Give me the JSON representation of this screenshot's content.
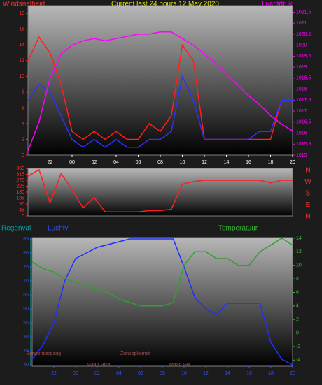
{
  "chart_data": [
    {
      "type": "line",
      "title": "Current last 24 hours 12 May 2020",
      "y_label": "Windsnelheid",
      "y2_label": "Luchtdruk",
      "x": [
        0,
        1,
        2,
        3,
        4,
        5,
        6,
        7,
        8,
        9,
        10,
        11,
        12,
        13,
        14,
        15,
        16,
        17,
        18,
        19,
        20,
        21,
        22,
        23,
        24
      ],
      "xlim": [
        0,
        24
      ],
      "xticks": [
        {
          "value": 2,
          "label": "22"
        },
        {
          "value": 4,
          "label": "00"
        },
        {
          "value": 6,
          "label": "02"
        },
        {
          "value": 8,
          "label": "04"
        },
        {
          "value": 10,
          "label": "06"
        },
        {
          "value": 12,
          "label": "08"
        },
        {
          "value": 14,
          "label": "10"
        },
        {
          "value": 16,
          "label": "12"
        },
        {
          "value": 18,
          "label": "14"
        },
        {
          "value": 20,
          "label": "16"
        },
        {
          "value": 22,
          "label": "18"
        },
        {
          "value": 24,
          "label": "20"
        }
      ],
      "ylim": [
        0,
        19
      ],
      "yticks": [
        0,
        2,
        4,
        6,
        8,
        10,
        12,
        14,
        16,
        18
      ],
      "y2lim": [
        1015,
        1021.8
      ],
      "y2ticks": [
        1015,
        {
          "value": 1015.5,
          "label": "1015,5"
        },
        1016,
        {
          "value": 1016.5,
          "label": "1016,5"
        },
        1017,
        {
          "value": 1017.5,
          "label": "1017,5"
        },
        1018,
        {
          "value": 1018.5,
          "label": "1018,5"
        },
        1019,
        {
          "value": 1019.5,
          "label": "1019,5"
        },
        1020,
        {
          "value": 1020.5,
          "label": "1020,5"
        },
        1021,
        {
          "value": 1021.5,
          "label": "1021,5"
        }
      ],
      "series": [
        {
          "color": "#ff2020",
          "values": [
            12,
            15,
            13,
            9,
            3,
            2,
            3,
            2,
            3,
            2,
            2,
            4,
            3,
            5,
            14,
            12,
            2,
            2,
            2,
            2,
            2,
            2,
            2,
            7,
            7
          ]
        },
        {
          "color": "#3030ff",
          "values": [
            7,
            9,
            8,
            5,
            2,
            1,
            2,
            1,
            2,
            1,
            1,
            2,
            2,
            3,
            10,
            7,
            2,
            2,
            2,
            2,
            2,
            3,
            3,
            7,
            7
          ]
        },
        {
          "color": "#ff00ff",
          "axis": "y2",
          "values": [
            1015.2,
            1016.5,
            1018.5,
            1019.6,
            1020.0,
            1020.2,
            1020.3,
            1020.2,
            1020.3,
            1020.4,
            1020.5,
            1020.5,
            1020.6,
            1020.6,
            1020.3,
            1020.0,
            1019.6,
            1019.2,
            1018.7,
            1018.2,
            1017.7,
            1017.3,
            1016.8,
            1016.4,
            1016.1
          ]
        }
      ]
    },
    {
      "type": "line",
      "x": [
        0,
        1,
        2,
        3,
        4,
        5,
        6,
        7,
        8,
        9,
        10,
        11,
        12,
        13,
        14,
        15,
        16,
        17,
        18,
        19,
        20,
        21,
        22,
        23,
        24
      ],
      "xlim": [
        0,
        24
      ],
      "ylim": [
        0,
        360
      ],
      "yticks": [
        0,
        45,
        90,
        135,
        180,
        225,
        270,
        315,
        360
      ],
      "right_labels": [
        "N",
        "W",
        "S",
        "E",
        "N"
      ],
      "series": [
        {
          "color": "#ff2020",
          "values": [
            300,
            350,
            100,
            320,
            200,
            60,
            140,
            30,
            30,
            30,
            30,
            40,
            40,
            50,
            240,
            260,
            270,
            270,
            270,
            270,
            270,
            270,
            250,
            270,
            270
          ]
        }
      ]
    },
    {
      "type": "line",
      "rain_label": "Regenval",
      "y_label": "Luchtv",
      "y2_label": "Temperatuur",
      "annotations": [
        "Zonsondergang",
        "Zonsopkomst",
        "Maan Rise",
        "Maan Set"
      ],
      "x": [
        0,
        1,
        2,
        3,
        4,
        5,
        6,
        7,
        8,
        9,
        10,
        11,
        12,
        13,
        14,
        15,
        16,
        17,
        18,
        19,
        20,
        21,
        22,
        23,
        24
      ],
      "xlim": [
        0,
        24
      ],
      "xticks": [
        {
          "value": 2,
          "label": "22"
        },
        {
          "value": 4,
          "label": "00"
        },
        {
          "value": 6,
          "label": "02"
        },
        {
          "value": 8,
          "label": "04"
        },
        {
          "value": 10,
          "label": "06"
        },
        {
          "value": 12,
          "label": "08"
        },
        {
          "value": 14,
          "label": "10"
        },
        {
          "value": 16,
          "label": "12"
        },
        {
          "value": 18,
          "label": "14"
        },
        {
          "value": 20,
          "label": "16"
        },
        {
          "value": 22,
          "label": "18"
        },
        {
          "value": 24,
          "label": "20"
        }
      ],
      "ylim": [
        39.5,
        85.5
      ],
      "yticks": [
        40,
        45,
        50,
        55,
        60,
        65,
        70,
        75,
        80,
        85
      ],
      "y2lim": [
        -4.9,
        14.1
      ],
      "y2ticks": [
        -4,
        -2,
        0,
        2,
        4,
        6,
        8,
        10,
        12,
        14
      ],
      "series": [
        {
          "color": "#2030ff",
          "values": [
            42,
            47,
            55,
            70,
            78,
            80,
            82,
            83,
            84,
            85,
            85,
            85,
            85,
            85,
            75,
            64,
            60,
            58,
            62,
            62,
            62,
            62,
            48,
            42,
            40
          ]
        },
        {
          "color": "#30a030",
          "axis": "y2",
          "values": [
            10.5,
            9.5,
            9,
            8,
            7.5,
            7,
            6.5,
            6,
            5,
            4.5,
            4,
            4,
            4,
            4.5,
            10,
            12,
            12,
            11,
            11,
            10,
            10,
            12,
            13,
            14,
            13
          ]
        }
      ]
    }
  ]
}
